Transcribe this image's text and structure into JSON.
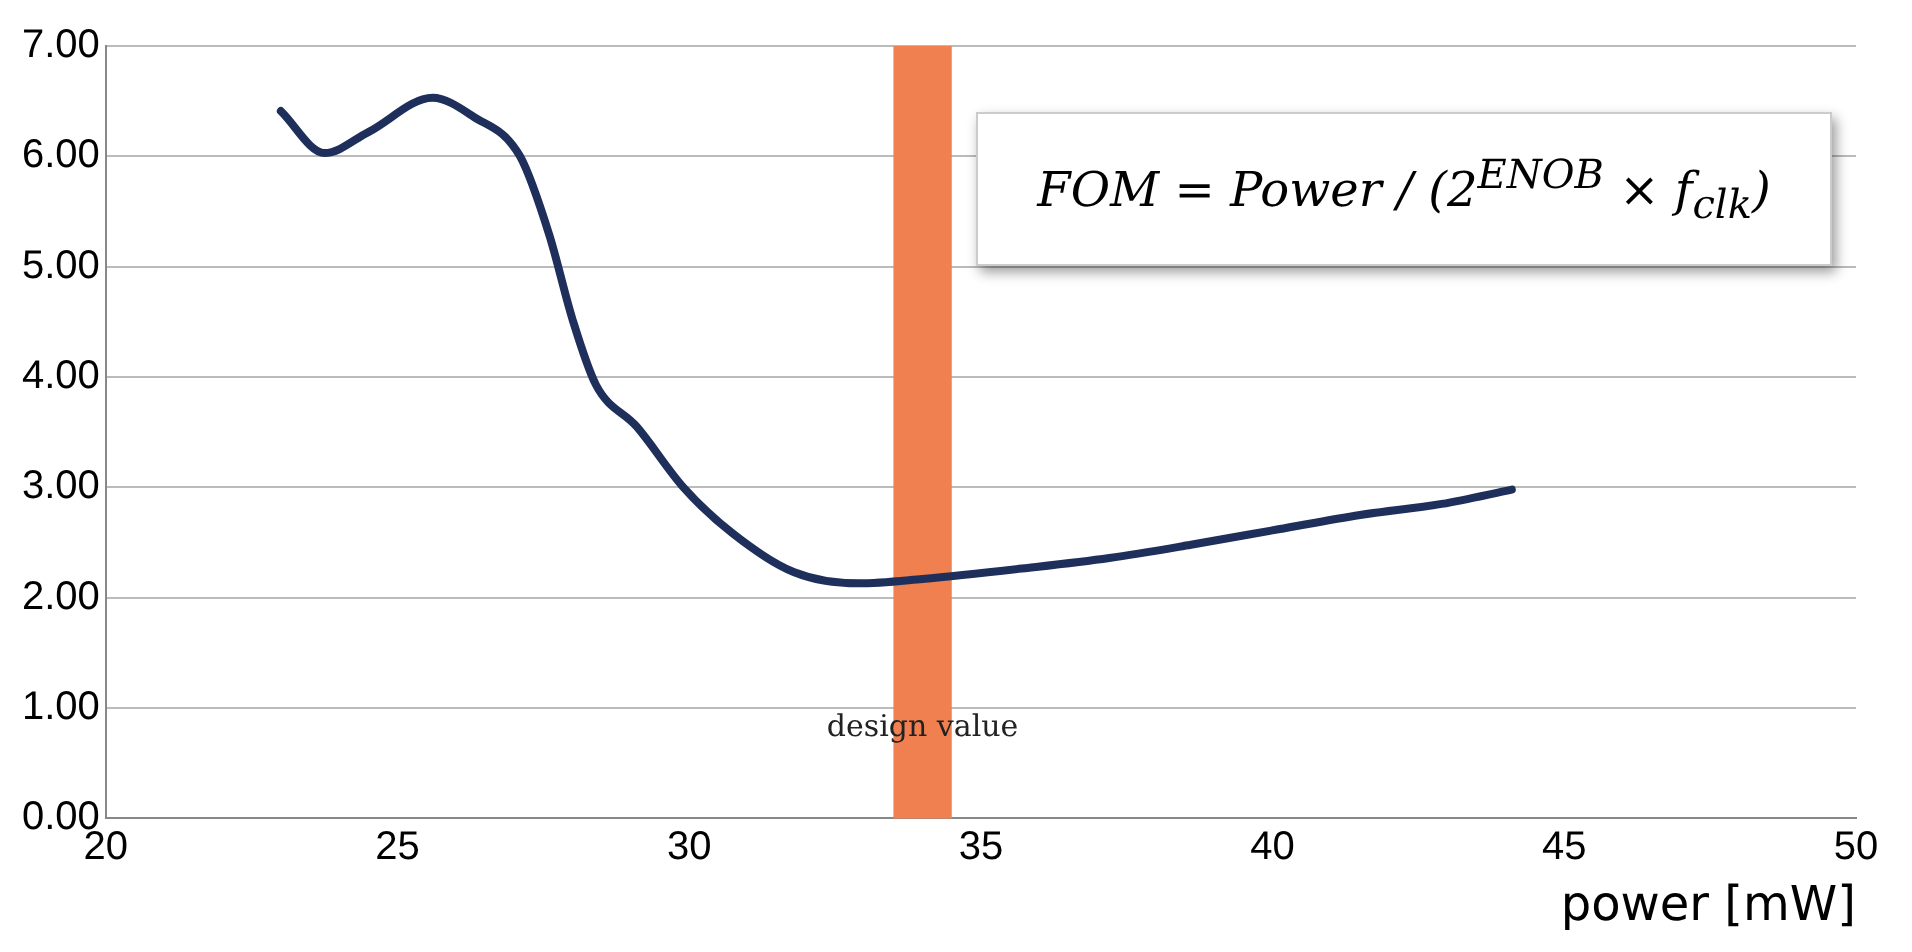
{
  "chart_data": {
    "type": "line",
    "x": [
      23,
      23.75,
      24.5,
      25.6,
      26.3,
      27.1,
      27.6,
      28.0,
      28.4,
      29.1,
      29.9,
      30.75,
      31.8,
      32.9,
      34.0,
      35.8,
      37.2,
      38.6,
      40.1,
      41.5,
      42.9,
      44.1
    ],
    "series": [
      {
        "color": "#1f2f5c",
        "values": [
          6.41,
          6.03,
          6.22,
          6.53,
          6.36,
          6.0,
          5.29,
          4.52,
          3.93,
          3.55,
          3.0,
          2.58,
          2.23,
          2.13,
          2.17,
          2.27,
          2.36,
          2.48,
          2.62,
          2.75,
          2.85,
          2.98
        ]
      }
    ],
    "xlim": [
      20,
      50
    ],
    "xticks": [
      20,
      25,
      30,
      35,
      40,
      45,
      50
    ],
    "ylim": [
      0,
      7
    ],
    "yticks": [
      {
        "value": 0,
        "label": "0.00"
      },
      {
        "value": 1,
        "label": "1.00"
      },
      {
        "value": 2,
        "label": "2.00"
      },
      {
        "value": 3,
        "label": "3.00"
      },
      {
        "value": 4,
        "label": "4.00"
      },
      {
        "value": 5,
        "label": "5.00"
      },
      {
        "value": 6,
        "label": "6.00"
      },
      {
        "value": 7,
        "label": "7.00"
      }
    ],
    "xlabel": "power [mW]",
    "grid": "y",
    "legend": false,
    "marker": "none",
    "line_style": "solid",
    "bands": [
      {
        "axis": "x",
        "from": 33.5,
        "to": 34.5,
        "label": "design value",
        "color": "#f08050"
      }
    ],
    "annotations": [
      "FOM = Power / (2$^{ENOB}$ × f$_{clk}$)"
    ]
  }
}
